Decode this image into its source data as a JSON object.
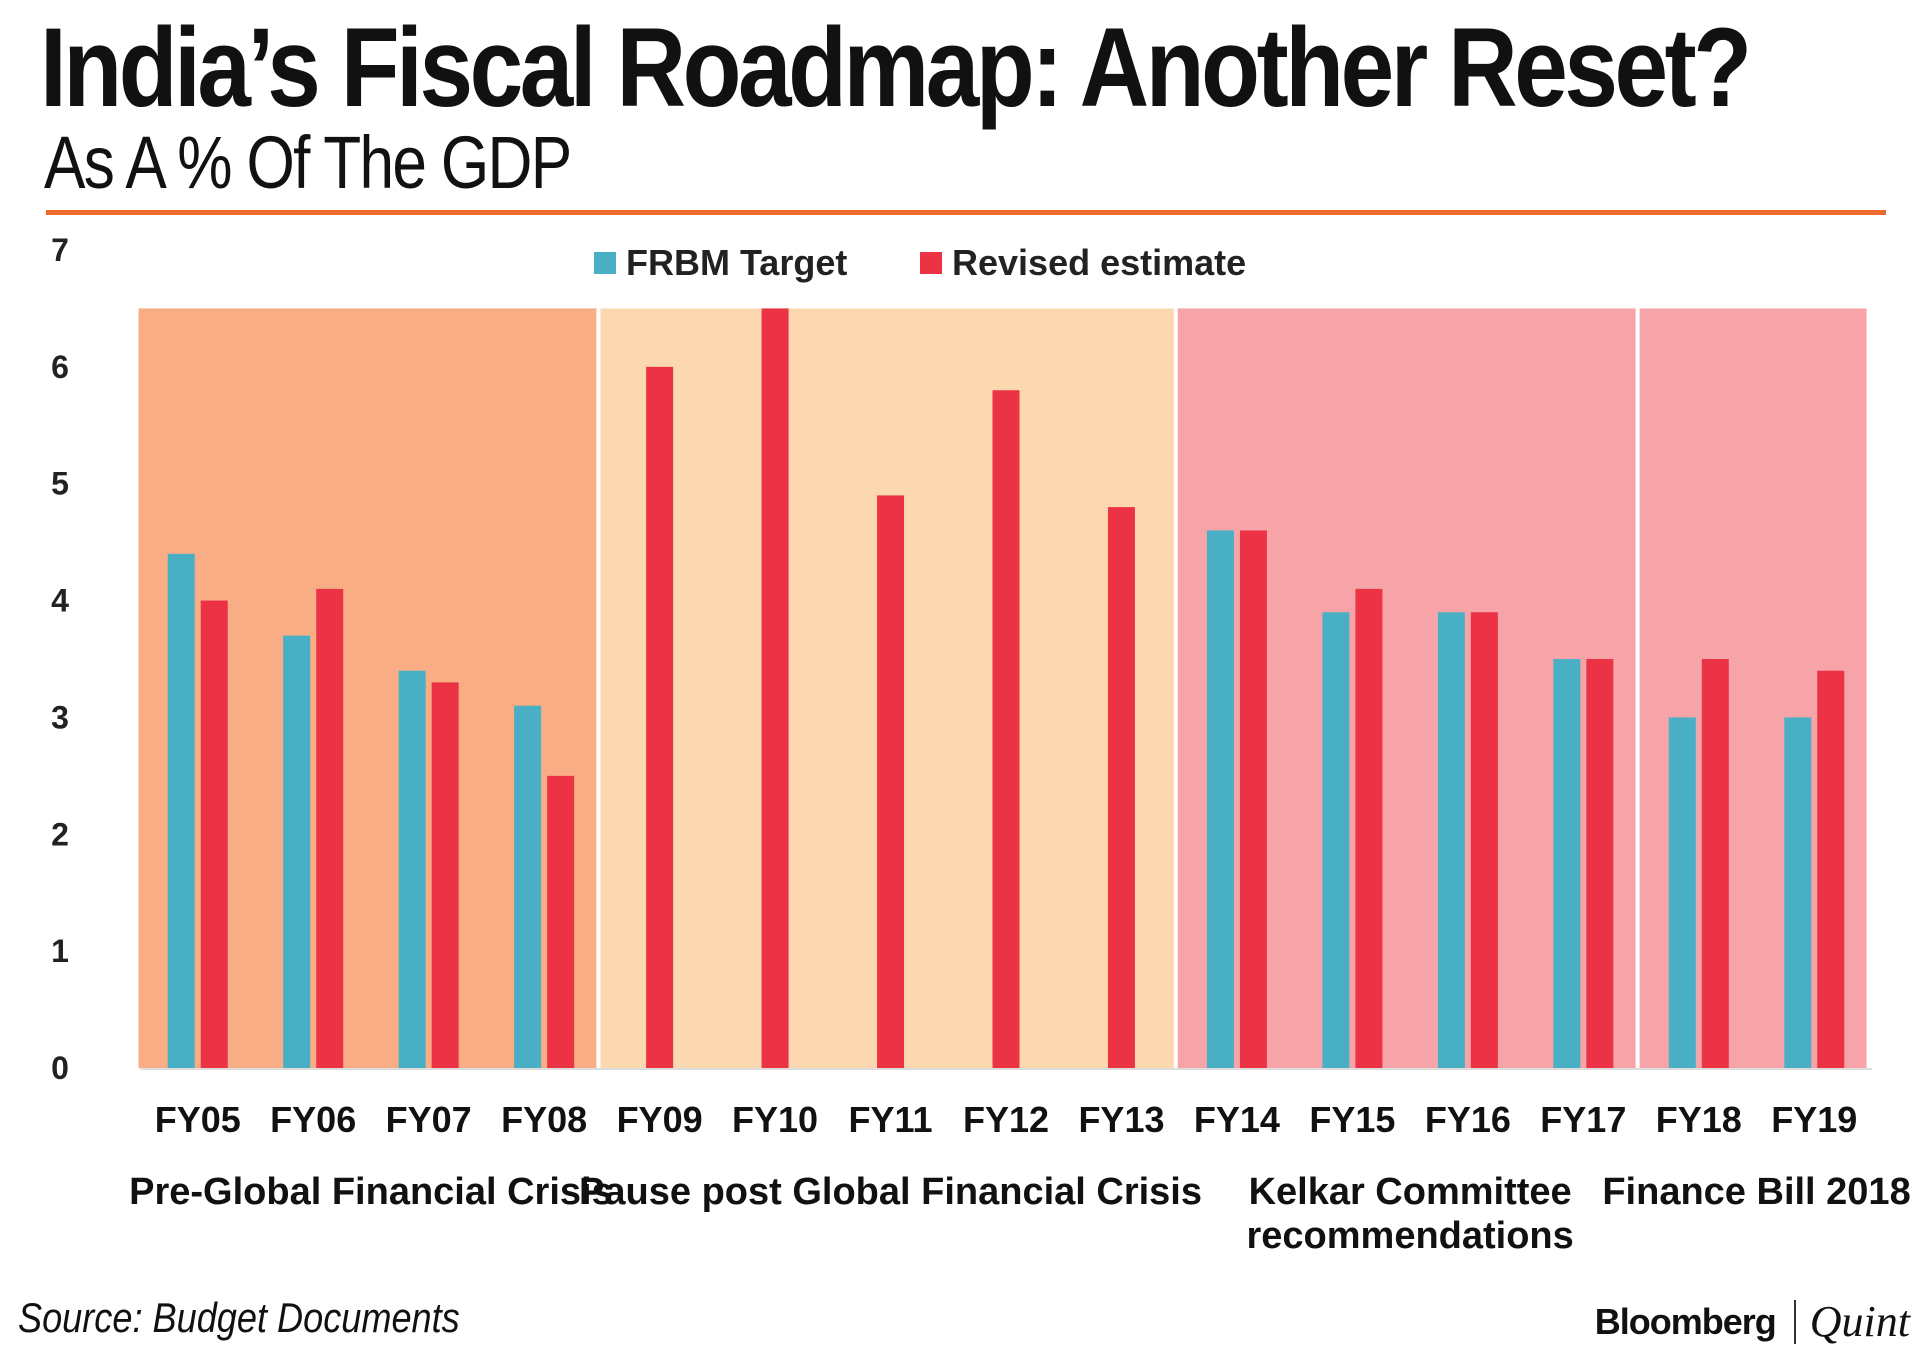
{
  "title": "India’s Fiscal Roadmap: Another Reset?",
  "subtitle": "As A % Of The GDP",
  "source": "Source: Budget Documents",
  "brand": {
    "primary": "Bloomberg",
    "secondary": "Quint"
  },
  "colors": {
    "frbm": "#49afc5",
    "revised": "#ec3245",
    "rule": "#ec6a2c",
    "era_pre": "#f8ad85",
    "era_pause": "#fcd8b1",
    "era_kelkar": "#f7a4a9"
  },
  "chart_data": {
    "type": "bar",
    "title": "India’s Fiscal Roadmap: Another Reset?",
    "subtitle": "As A % Of The GDP",
    "xlabel": "",
    "ylabel": "",
    "ylim": [
      0,
      7
    ],
    "yticks": [
      "0",
      "1",
      "2",
      "3",
      "4",
      "5",
      "6",
      "7"
    ],
    "legend_position": "top-center",
    "categories": [
      "FY05",
      "FY06",
      "FY07",
      "FY08",
      "FY09",
      "FY10",
      "FY11",
      "FY12",
      "FY13",
      "FY14",
      "FY15",
      "FY16",
      "FY17",
      "FY18",
      "FY19"
    ],
    "series": [
      {
        "name": "FRBM Target",
        "color": "#49afc5",
        "values": [
          4.4,
          3.7,
          3.4,
          3.1,
          null,
          null,
          null,
          null,
          null,
          4.6,
          3.9,
          3.9,
          3.5,
          3.0,
          3.0
        ]
      },
      {
        "name": "Revised estimate",
        "color": "#ec3245",
        "values": [
          4.0,
          4.1,
          3.3,
          2.5,
          6.0,
          6.5,
          4.9,
          5.8,
          4.8,
          4.6,
          4.1,
          3.9,
          3.5,
          3.5,
          3.4
        ]
      }
    ],
    "eras": [
      {
        "label": [
          "Pre-Global Financial Crisis"
        ],
        "from": "FY05",
        "to": "FY08",
        "top": 6.5,
        "color": "#f8ad85"
      },
      {
        "label": [
          "Pause post Global Financial Crisis"
        ],
        "from": "FY09",
        "to": "FY13",
        "top": 6.5,
        "color": "#fcd8b1"
      },
      {
        "label": [
          "Kelkar Committee",
          "recommendations"
        ],
        "from": "FY14",
        "to": "FY17",
        "top": 6.5,
        "color": "#f7a4a9"
      },
      {
        "label": [
          "Finance Bill 2018"
        ],
        "from": "FY18",
        "to": "FY19",
        "top": 6.5,
        "color": "#f7a4a9"
      }
    ]
  }
}
